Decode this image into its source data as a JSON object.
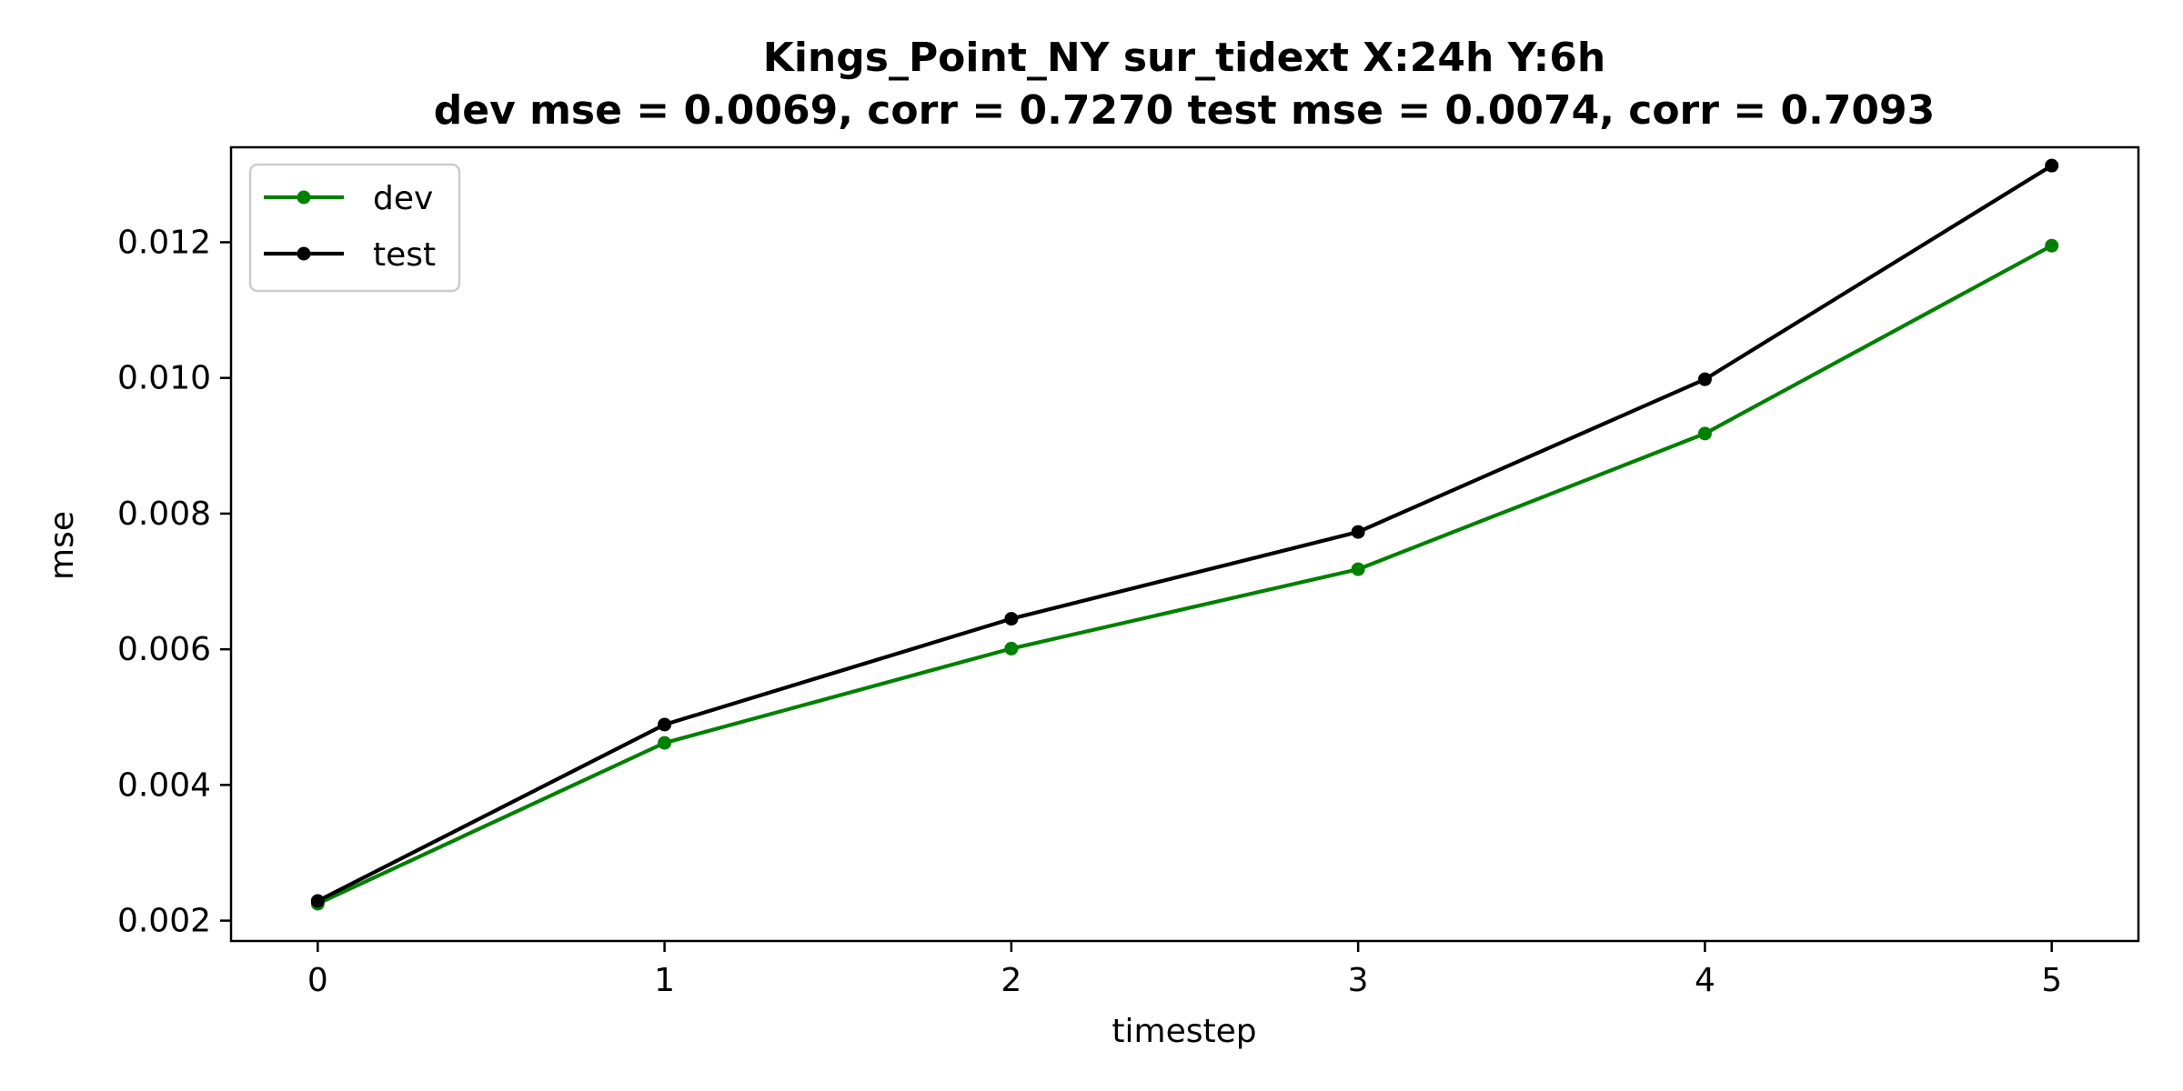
{
  "chart_data": {
    "type": "line",
    "title": "Kings_Point_NY   sur_tidext   X:24h   Y:6h",
    "subtitle": "dev mse = 0.0069, corr = 0.7270   test mse = 0.0074, corr = 0.7093",
    "xlabel": "timestep",
    "ylabel": "mse",
    "x": [
      0,
      1,
      2,
      3,
      4,
      5
    ],
    "xticks": [
      "0",
      "1",
      "2",
      "3",
      "4",
      "5"
    ],
    "yticks": [
      "0.002",
      "0.004",
      "0.006",
      "0.008",
      "0.010",
      "0.012"
    ],
    "xlim": [
      -0.25,
      5.25
    ],
    "ylim": [
      0.0017,
      0.0134
    ],
    "grid": false,
    "legend_position": "top-left",
    "series": [
      {
        "name": "dev",
        "color": "#008000",
        "values": [
          0.00225,
          0.00462,
          0.00601,
          0.00718,
          0.00918,
          0.01195
        ]
      },
      {
        "name": "test",
        "color": "#000000",
        "values": [
          0.00229,
          0.00489,
          0.00645,
          0.00773,
          0.00998,
          0.01313
        ]
      }
    ]
  }
}
